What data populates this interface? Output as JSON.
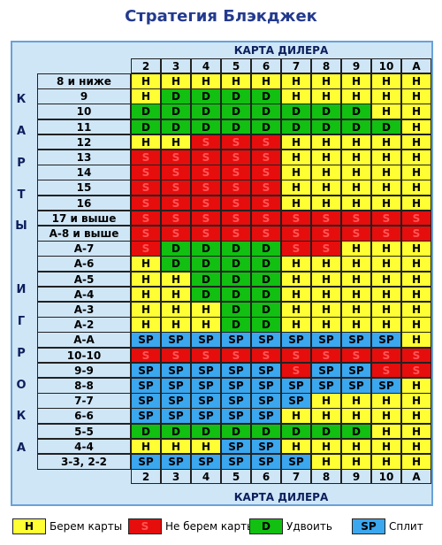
{
  "title": "Стратегия Блэкджек",
  "dealer_header": "КАРТА ДИЛЕРА",
  "dealer_cards": [
    "2",
    "3",
    "4",
    "5",
    "6",
    "7",
    "8",
    "9",
    "10",
    "A"
  ],
  "player_label_letters": [
    "К",
    "А",
    "Р",
    "Т",
    "Ы",
    "",
    "И",
    "Г",
    "Р",
    "О",
    "К",
    "А"
  ],
  "codes": {
    "H": {
      "text": "H",
      "color": "#ffff33"
    },
    "S": {
      "text": "S",
      "color": "#e60d0d"
    },
    "D": {
      "text": "D",
      "color": "#11c011"
    },
    "SP": {
      "text": "SP",
      "color": "#3ba7ef"
    }
  },
  "rows": [
    {
      "label": "8 и ниже",
      "cells": [
        "H",
        "H",
        "H",
        "H",
        "H",
        "H",
        "H",
        "H",
        "H",
        "H"
      ]
    },
    {
      "label": "9",
      "cells": [
        "H",
        "D",
        "D",
        "D",
        "D",
        "H",
        "H",
        "H",
        "H",
        "H"
      ]
    },
    {
      "label": "10",
      "cells": [
        "D",
        "D",
        "D",
        "D",
        "D",
        "D",
        "D",
        "D",
        "H",
        "H"
      ]
    },
    {
      "label": "11",
      "cells": [
        "D",
        "D",
        "D",
        "D",
        "D",
        "D",
        "D",
        "D",
        "D",
        "H"
      ]
    },
    {
      "label": "12",
      "cells": [
        "H",
        "H",
        "S",
        "S",
        "S",
        "H",
        "H",
        "H",
        "H",
        "H"
      ]
    },
    {
      "label": "13",
      "cells": [
        "S",
        "S",
        "S",
        "S",
        "S",
        "H",
        "H",
        "H",
        "H",
        "H"
      ]
    },
    {
      "label": "14",
      "cells": [
        "S",
        "S",
        "S",
        "S",
        "S",
        "H",
        "H",
        "H",
        "H",
        "H"
      ]
    },
    {
      "label": "15",
      "cells": [
        "S",
        "S",
        "S",
        "S",
        "S",
        "H",
        "H",
        "H",
        "H",
        "H"
      ]
    },
    {
      "label": "16",
      "cells": [
        "S",
        "S",
        "S",
        "S",
        "S",
        "H",
        "H",
        "H",
        "H",
        "H"
      ]
    },
    {
      "label": "17 и выше",
      "cells": [
        "S",
        "S",
        "S",
        "S",
        "S",
        "S",
        "S",
        "S",
        "S",
        "S"
      ]
    },
    {
      "label": "A-8 и выше",
      "cells": [
        "S",
        "S",
        "S",
        "S",
        "S",
        "S",
        "S",
        "S",
        "S",
        "S"
      ]
    },
    {
      "label": "A-7",
      "cells": [
        "S",
        "D",
        "D",
        "D",
        "D",
        "S",
        "S",
        "H",
        "H",
        "H"
      ]
    },
    {
      "label": "A-6",
      "cells": [
        "H",
        "D",
        "D",
        "D",
        "D",
        "H",
        "H",
        "H",
        "H",
        "H"
      ]
    },
    {
      "label": "A-5",
      "cells": [
        "H",
        "H",
        "D",
        "D",
        "D",
        "H",
        "H",
        "H",
        "H",
        "H"
      ]
    },
    {
      "label": "A-4",
      "cells": [
        "H",
        "H",
        "D",
        "D",
        "D",
        "H",
        "H",
        "H",
        "H",
        "H"
      ]
    },
    {
      "label": "A-3",
      "cells": [
        "H",
        "H",
        "H",
        "D",
        "D",
        "H",
        "H",
        "H",
        "H",
        "H"
      ]
    },
    {
      "label": "A-2",
      "cells": [
        "H",
        "H",
        "H",
        "D",
        "D",
        "H",
        "H",
        "H",
        "H",
        "H"
      ]
    },
    {
      "label": "A-A",
      "cells": [
        "SP",
        "SP",
        "SP",
        "SP",
        "SP",
        "SP",
        "SP",
        "SP",
        "SP",
        "H"
      ]
    },
    {
      "label": "10-10",
      "cells": [
        "S",
        "S",
        "S",
        "S",
        "S",
        "S",
        "S",
        "S",
        "S",
        "S"
      ]
    },
    {
      "label": "9-9",
      "cells": [
        "SP",
        "SP",
        "SP",
        "SP",
        "SP",
        "S",
        "SP",
        "SP",
        "S",
        "S"
      ]
    },
    {
      "label": "8-8",
      "cells": [
        "SP",
        "SP",
        "SP",
        "SP",
        "SP",
        "SP",
        "SP",
        "SP",
        "SP",
        "H"
      ]
    },
    {
      "label": "7-7",
      "cells": [
        "SP",
        "SP",
        "SP",
        "SP",
        "SP",
        "SP",
        "H",
        "H",
        "H",
        "H"
      ]
    },
    {
      "label": "6-6",
      "cells": [
        "SP",
        "SP",
        "SP",
        "SP",
        "SP",
        "H",
        "H",
        "H",
        "H",
        "H"
      ]
    },
    {
      "label": "5-5",
      "cells": [
        "D",
        "D",
        "D",
        "D",
        "D",
        "D",
        "D",
        "D",
        "H",
        "H"
      ]
    },
    {
      "label": "4-4",
      "cells": [
        "H",
        "H",
        "H",
        "SP",
        "SP",
        "H",
        "H",
        "H",
        "H",
        "H"
      ]
    },
    {
      "label": "3-3, 2-2",
      "cells": [
        "SP",
        "SP",
        "SP",
        "SP",
        "SP",
        "SP",
        "H",
        "H",
        "H",
        "H"
      ]
    }
  ],
  "legend": [
    {
      "code": "H",
      "label": "Берем карты"
    },
    {
      "code": "S",
      "label": "Не берем карты"
    },
    {
      "code": "D",
      "label": "Удвоить"
    },
    {
      "code": "SP",
      "label": "Сплит"
    }
  ]
}
